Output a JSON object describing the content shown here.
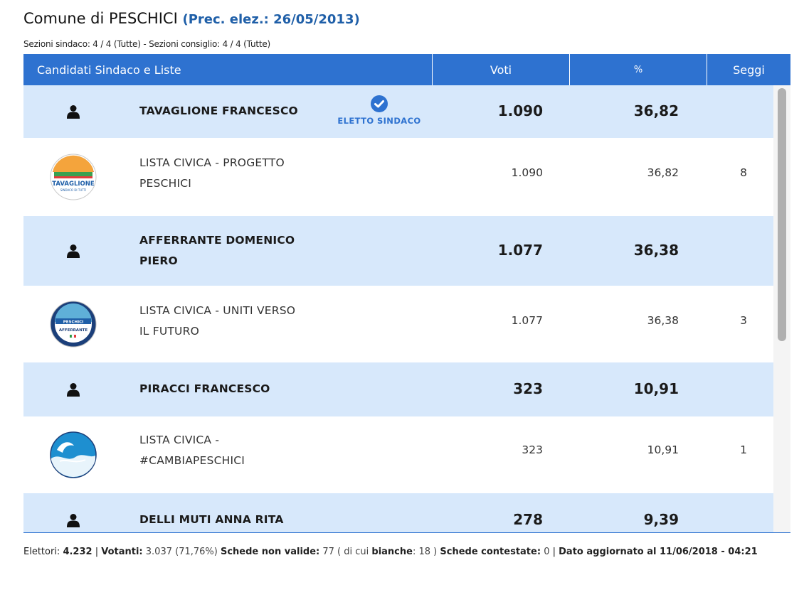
{
  "header": {
    "comune_label": "Comune di PESCHICI",
    "prec": "(Prec. elez.: 26/05/2013)",
    "sezioni": "Sezioni sindaco: 4 / 4 (Tutte) - Sezioni consiglio: 4 / 4 (Tutte)"
  },
  "table": {
    "columns": [
      "Candidati Sindaco e Liste",
      "Voti",
      "%",
      "Seggi"
    ],
    "rows": [
      {
        "type": "candidate",
        "name": "TAVAGLIONE FRANCESCO",
        "voti": "1.090",
        "perc": "36,82",
        "eletto": "ELETTO SINDACO",
        "icon": "person-icon"
      },
      {
        "type": "list",
        "name_line1": "LISTA CIVICA - PROGETTO",
        "name_line2": "PESCHICI",
        "voti": "1.090",
        "perc": "36,82",
        "seggi": "8",
        "logo_text": "TAVAGLIONE",
        "logo_sub": "SINDACO DI TUTTI"
      },
      {
        "type": "candidate",
        "name_line1": "AFFERRANTE DOMENICO",
        "name_line2": "PIERO",
        "voti": "1.077",
        "perc": "36,38",
        "icon": "person-icon"
      },
      {
        "type": "list",
        "name_line1": "LISTA CIVICA - UNITI VERSO",
        "name_line2": "IL FUTURO",
        "voti": "1.077",
        "perc": "36,38",
        "seggi": "3",
        "logo_text": "PESCHICI",
        "logo_sub": "AFFERRANTE"
      },
      {
        "type": "candidate",
        "name": "PIRACCI FRANCESCO",
        "voti": "323",
        "perc": "10,91",
        "icon": "person-icon"
      },
      {
        "type": "list",
        "name_line1": "LISTA CIVICA -",
        "name_line2": "#CAMBIAPESCHICI",
        "voti": "323",
        "perc": "10,91",
        "seggi": "1"
      },
      {
        "type": "candidate",
        "name": "DELLI MUTI ANNA RITA",
        "voti": "278",
        "perc": "9,39",
        "icon": "person-icon"
      }
    ]
  },
  "footer": {
    "elettori_label": "Elettori:",
    "elettori": "4.232",
    "votanti_label": "Votanti:",
    "votanti": "3.037 (71,76%)",
    "nonvalide_label": "Schede non valide:",
    "nonvalide": "77 ( di cui",
    "bianche_label": "bianche",
    "bianche": ": 18 )",
    "contestate_label": "Schede contestate:",
    "contestate": "0",
    "aggiornato": "Dato aggiornato al 11/06/2018 - 04:21"
  },
  "colors": {
    "header_blue": "#2e72d0",
    "candidate_row": "#d7e8fb",
    "prec_blue": "#1f5fa8"
  }
}
